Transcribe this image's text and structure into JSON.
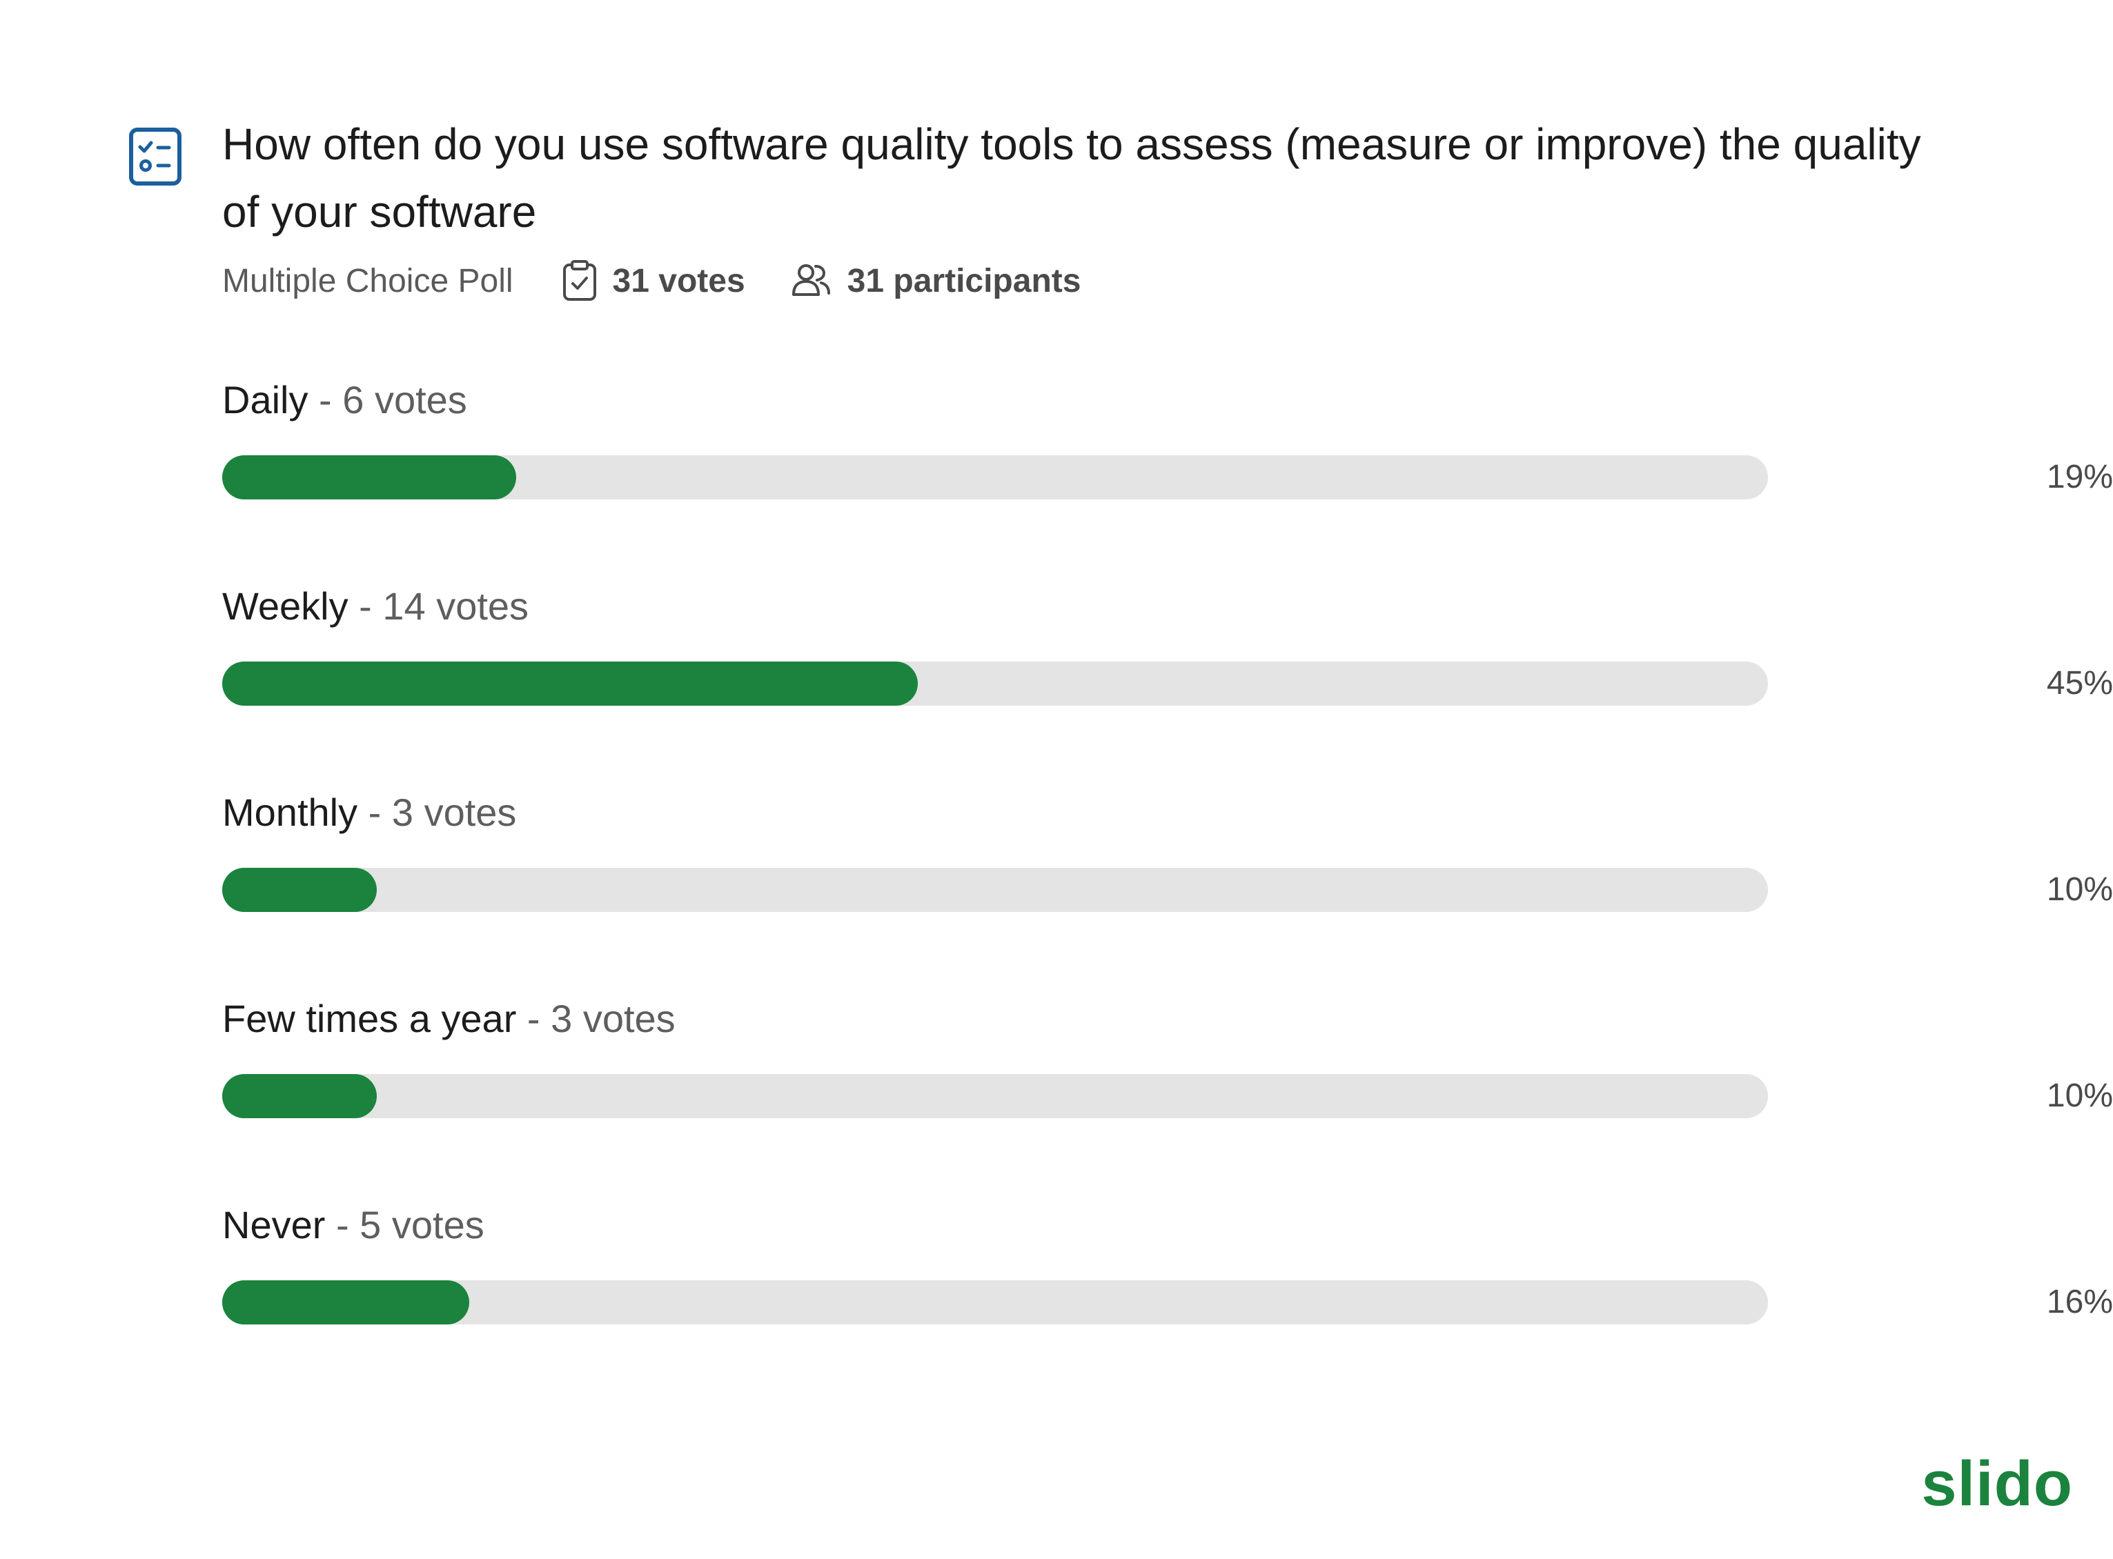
{
  "question": "How often do you use software quality tools to assess (measure or improve) the quality of your software",
  "poll_type": "Multiple Choice Poll",
  "votes_label": "31 votes",
  "participants_label": "31 participants",
  "brand": "slido",
  "colors": {
    "accent": "#1b833d",
    "track": "#e4e4e4",
    "icon": "#1c5f9e"
  },
  "icons": {
    "poll": "poll-checklist-icon",
    "votes": "clipboard-check-icon",
    "participants": "users-icon"
  },
  "chart_data": {
    "type": "bar",
    "orientation": "horizontal",
    "categories": [
      "Daily",
      "Weekly",
      "Monthly",
      "Few times a year",
      "Never"
    ],
    "vote_labels": [
      "6 votes",
      "14 votes",
      "3 votes",
      "3 votes",
      "5 votes"
    ],
    "votes": [
      6,
      14,
      3,
      3,
      5
    ],
    "percent_labels": [
      "19%",
      "45%",
      "10%",
      "10%",
      "16%"
    ],
    "values": [
      19,
      45,
      10,
      10,
      16
    ],
    "xlim": [
      0,
      100
    ]
  }
}
